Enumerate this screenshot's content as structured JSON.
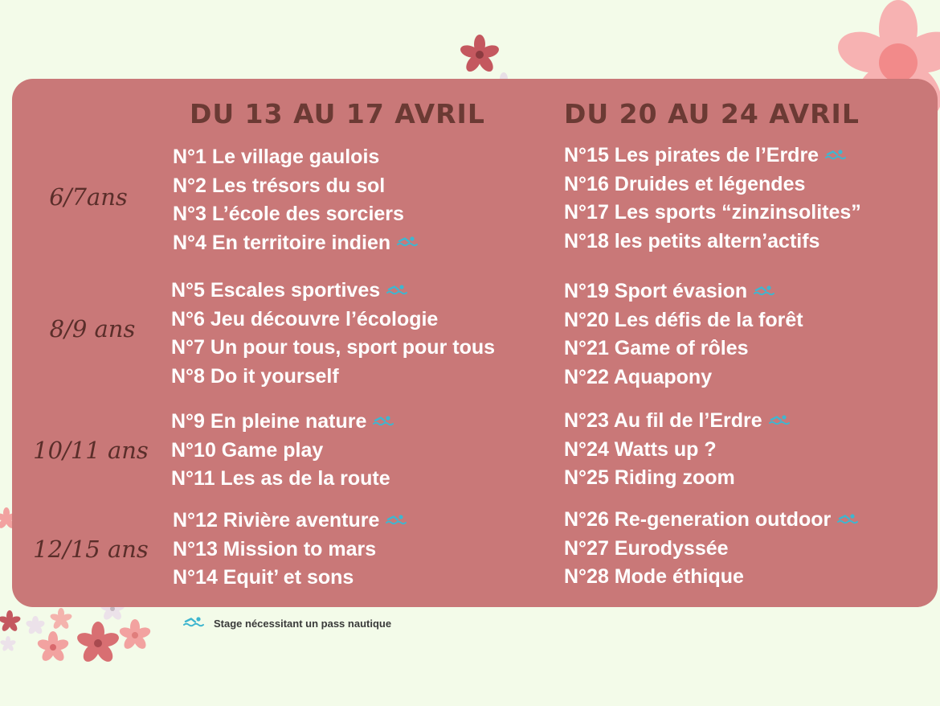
{
  "columns": [
    {
      "title": "DU 13 AU 17 AVRIL",
      "groups": [
        {
          "items": [
            {
              "label": "N°1 Le village gaulois",
              "pass_nautique": false
            },
            {
              "label": "N°2 Les trésors du sol",
              "pass_nautique": false
            },
            {
              "label": "N°3 L’école des sorciers",
              "pass_nautique": false
            },
            {
              "label": "N°4 En territoire indien",
              "pass_nautique": true
            }
          ]
        },
        {
          "items": [
            {
              "label": "N°5 Escales sportives",
              "pass_nautique": true
            },
            {
              "label": "N°6 Jeu découvre l’écologie",
              "pass_nautique": false
            },
            {
              "label": "N°7 Un pour tous, sport pour tous",
              "pass_nautique": false
            },
            {
              "label": "N°8 Do it yourself",
              "pass_nautique": false
            }
          ]
        },
        {
          "items": [
            {
              "label": "N°9 En pleine nature",
              "pass_nautique": true
            },
            {
              "label": "N°10 Game play",
              "pass_nautique": false
            },
            {
              "label": "N°11 Les as de la route",
              "pass_nautique": false
            }
          ]
        },
        {
          "items": [
            {
              "label": "N°12 Rivière aventure",
              "pass_nautique": true
            },
            {
              "label": "N°13 Mission to mars",
              "pass_nautique": false
            },
            {
              "label": "N°14 Equit’ et sons",
              "pass_nautique": false
            }
          ]
        }
      ]
    },
    {
      "title": "DU 20 AU 24 AVRIL",
      "groups": [
        {
          "items": [
            {
              "label": "N°15 Les pirates de l’Erdre",
              "pass_nautique": true
            },
            {
              "label": "N°16 Druides et légendes",
              "pass_nautique": false
            },
            {
              "label": "N°17 Les sports “zinzinsolites”",
              "pass_nautique": false
            },
            {
              "label": "N°18 les petits altern’actifs",
              "pass_nautique": false
            }
          ]
        },
        {
          "items": [
            {
              "label": "N°19 Sport évasion",
              "pass_nautique": true
            },
            {
              "label": "N°20 Les défis de la forêt",
              "pass_nautique": false
            },
            {
              "label": "N°21 Game of rôles",
              "pass_nautique": false
            },
            {
              "label": "N°22 Aquapony",
              "pass_nautique": false
            }
          ]
        },
        {
          "items": [
            {
              "label": "N°23 Au fil de l’Erdre",
              "pass_nautique": true
            },
            {
              "label": "N°24 Watts up ?",
              "pass_nautique": false
            },
            {
              "label": "N°25 Riding zoom",
              "pass_nautique": false
            }
          ]
        },
        {
          "items": [
            {
              "label": "N°26 Re-generation outdoor",
              "pass_nautique": true
            },
            {
              "label": "N°27 Eurodyssée",
              "pass_nautique": false
            },
            {
              "label": "N°28 Mode éthique",
              "pass_nautique": false
            }
          ]
        }
      ]
    }
  ],
  "age_groups": [
    "6/7ans",
    "8/9 ans",
    "10/11 ans",
    "12/15 ans"
  ],
  "legend": {
    "icon": "swimmer-icon",
    "text": "Stage nécessitant un pass nautique"
  },
  "colors": {
    "background": "#f3fbe9",
    "card": "#c97878",
    "title": "#6b3a34",
    "age_text": "#5a2e2a",
    "item_text": "#ffffff",
    "swim_icon": "#3fb6cf"
  }
}
